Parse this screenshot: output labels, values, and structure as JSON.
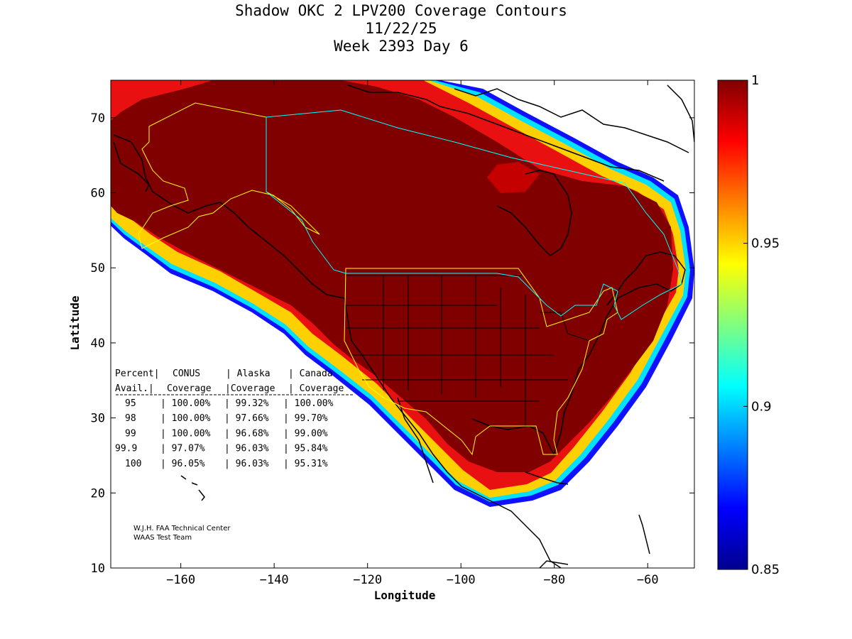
{
  "chart_data": {
    "type": "heatmap",
    "title": "Shadow OKC 2 LPV200 Coverage Contours",
    "subtitle_date": "11/22/25",
    "subtitle_week": "Week 2393 Day 6",
    "xlabel": "Longitude",
    "ylabel": "Latitude",
    "xlim": [
      -175,
      -50
    ],
    "ylim": [
      10,
      75
    ],
    "xticks": [
      -160,
      -140,
      -120,
      -100,
      -80,
      -60
    ],
    "yticks": [
      10,
      20,
      30,
      40,
      50,
      60,
      70
    ],
    "colorbar": {
      "range": [
        0.85,
        1
      ],
      "ticks": [
        {
          "value": 1,
          "label": "1"
        },
        {
          "value": 0.95,
          "label": "0.95"
        },
        {
          "value": 0.9,
          "label": "0.9"
        },
        {
          "value": 0.85,
          "label": "0.85"
        }
      ],
      "colormap": "jet"
    },
    "coverage_table": {
      "header_row1": [
        "Percent",
        "CONUS",
        "Alaska",
        "Canada"
      ],
      "header_row2": [
        "Avail.",
        "Coverage",
        "Coverage",
        "Coverage"
      ],
      "rows": [
        [
          "95",
          "100.00%",
          "99.32%",
          "100.00%"
        ],
        [
          "98",
          "100.00%",
          "97.66%",
          "99.70%"
        ],
        [
          "99",
          "100.00%",
          "96.68%",
          "99.00%"
        ],
        [
          "99.9",
          "97.07%",
          "96.03%",
          "95.84%"
        ],
        [
          "100",
          "96.05%",
          "96.03%",
          "95.31%"
        ]
      ]
    },
    "credits": [
      "W.J.H. FAA Technical Center",
      "WAAS Test Team"
    ]
  },
  "colors": {
    "full_coverage": "#800000",
    "coastline": "#000000",
    "us_boundary": "#ffff00",
    "canada_boundary": "#00ffff"
  }
}
